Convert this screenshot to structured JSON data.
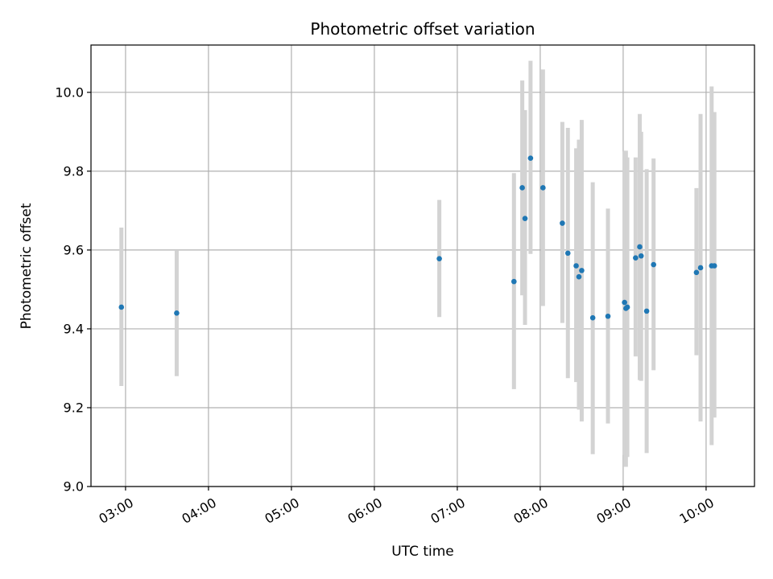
{
  "chart_data": {
    "type": "scatter",
    "title": "Photometric offset variation",
    "xlabel": "UTC time",
    "ylabel": "Photometric offset",
    "x_axis_type": "time",
    "xlim": [
      "02:35",
      "10:35"
    ],
    "ylim": [
      9.0,
      10.12
    ],
    "grid": true,
    "x_ticks": [
      "03:00",
      "04:00",
      "05:00",
      "06:00",
      "07:00",
      "08:00",
      "09:00",
      "10:00"
    ],
    "y_ticks": [
      "9.0",
      "9.2",
      "9.4",
      "9.6",
      "9.8",
      "10.0"
    ],
    "colors": {
      "marker": "#1f77b4",
      "errorbar": "#d3d3d3"
    },
    "points": [
      {
        "x": "02:57",
        "y": 9.455,
        "yerr_low": 9.255,
        "yerr_high": 9.657
      },
      {
        "x": "03:37",
        "y": 9.44,
        "yerr_low": 9.28,
        "yerr_high": 9.598
      },
      {
        "x": "06:47",
        "y": 9.578,
        "yerr_low": 9.43,
        "yerr_high": 9.727
      },
      {
        "x": "07:41",
        "y": 9.52,
        "yerr_low": 9.247,
        "yerr_high": 9.795
      },
      {
        "x": "07:47",
        "y": 9.758,
        "yerr_low": 9.485,
        "yerr_high": 10.03
      },
      {
        "x": "07:49",
        "y": 9.68,
        "yerr_low": 9.41,
        "yerr_high": 9.955
      },
      {
        "x": "07:53",
        "y": 9.833,
        "yerr_low": 9.59,
        "yerr_high": 10.08
      },
      {
        "x": "08:02",
        "y": 9.758,
        "yerr_low": 9.458,
        "yerr_high": 10.058
      },
      {
        "x": "08:16",
        "y": 9.668,
        "yerr_low": 9.415,
        "yerr_high": 9.925
      },
      {
        "x": "08:20",
        "y": 9.592,
        "yerr_low": 9.275,
        "yerr_high": 9.91
      },
      {
        "x": "08:26",
        "y": 9.56,
        "yerr_low": 9.265,
        "yerr_high": 9.858
      },
      {
        "x": "08:28",
        "y": 9.532,
        "yerr_low": 9.195,
        "yerr_high": 9.88
      },
      {
        "x": "08:30",
        "y": 9.548,
        "yerr_low": 9.165,
        "yerr_high": 9.93
      },
      {
        "x": "08:38",
        "y": 9.428,
        "yerr_low": 9.082,
        "yerr_high": 9.772
      },
      {
        "x": "08:49",
        "y": 9.432,
        "yerr_low": 9.16,
        "yerr_high": 9.705
      },
      {
        "x": "09:01",
        "y": 9.467,
        "yerr_low": 9.08,
        "yerr_high": 9.85
      },
      {
        "x": "09:02",
        "y": 9.452,
        "yerr_low": 9.05,
        "yerr_high": 9.852
      },
      {
        "x": "09:03",
        "y": 9.455,
        "yerr_low": 9.075,
        "yerr_high": 9.835
      },
      {
        "x": "09:09",
        "y": 9.58,
        "yerr_low": 9.33,
        "yerr_high": 9.835
      },
      {
        "x": "09:12",
        "y": 9.608,
        "yerr_low": 9.27,
        "yerr_high": 9.945
      },
      {
        "x": "09:13",
        "y": 9.585,
        "yerr_low": 9.268,
        "yerr_high": 9.9
      },
      {
        "x": "09:17",
        "y": 9.445,
        "yerr_low": 9.085,
        "yerr_high": 9.805
      },
      {
        "x": "09:22",
        "y": 9.563,
        "yerr_low": 9.295,
        "yerr_high": 9.832
      },
      {
        "x": "09:53",
        "y": 9.543,
        "yerr_low": 9.333,
        "yerr_high": 9.757
      },
      {
        "x": "09:56",
        "y": 9.555,
        "yerr_low": 9.165,
        "yerr_high": 9.945
      },
      {
        "x": "10:04",
        "y": 9.56,
        "yerr_low": 9.105,
        "yerr_high": 10.015
      },
      {
        "x": "10:06",
        "y": 9.56,
        "yerr_low": 9.175,
        "yerr_high": 9.95
      }
    ]
  }
}
